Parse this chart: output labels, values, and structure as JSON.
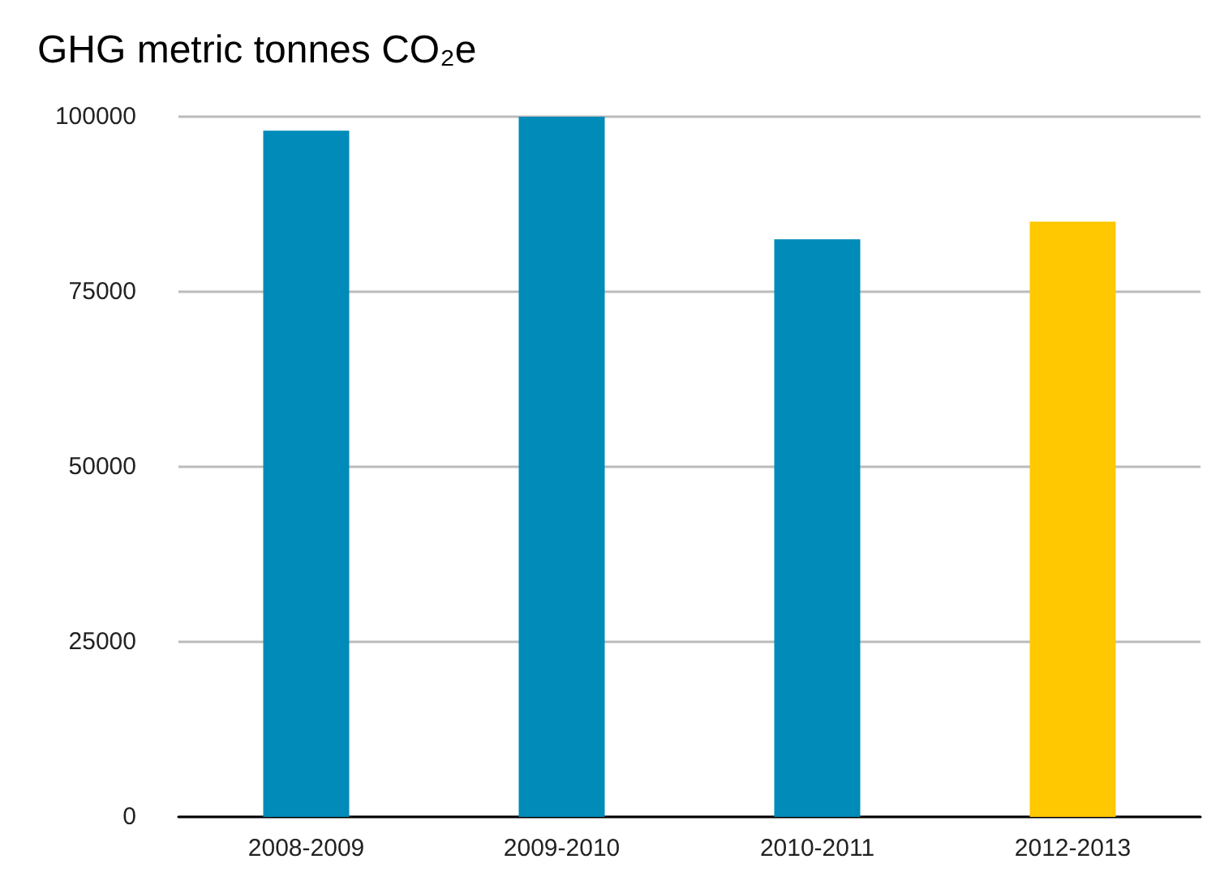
{
  "chart_data": {
    "type": "bar",
    "title": "GHG metric tonnes CO₂e",
    "categories": [
      "2008-2009",
      "2009-2010",
      "2010-2011",
      "2012-2013"
    ],
    "values": [
      98000,
      100000,
      82500,
      85000
    ],
    "colors": [
      "#008bb8",
      "#008bb8",
      "#008bb8",
      "#ffc800"
    ],
    "ylim": [
      0,
      100000
    ],
    "yticks": [
      0,
      25000,
      50000,
      75000,
      100000
    ],
    "grid": "y"
  }
}
